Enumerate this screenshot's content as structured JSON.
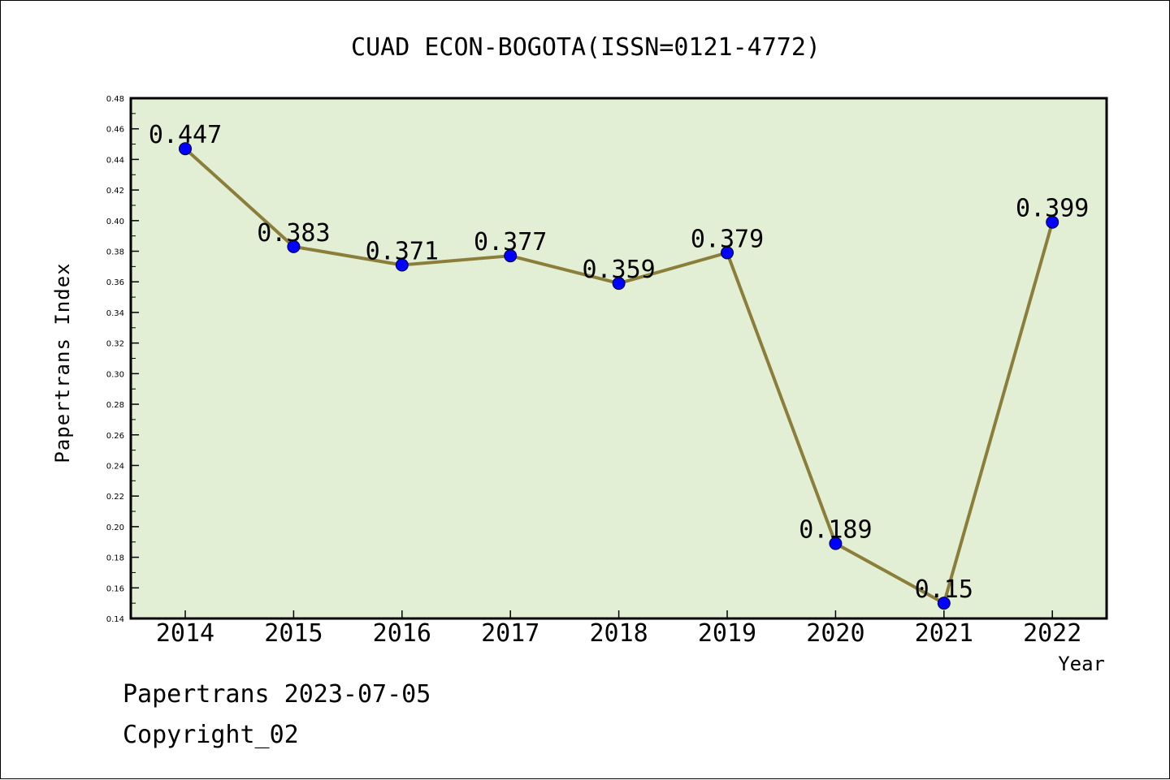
{
  "chart_data": {
    "type": "line",
    "title": "CUAD ECON-BOGOTA(ISSN=0121-4772)",
    "xlabel": "Year",
    "ylabel": "Papertrans Index",
    "categories": [
      "2014",
      "2015",
      "2016",
      "2017",
      "2018",
      "2019",
      "2020",
      "2021",
      "2022"
    ],
    "values": [
      0.447,
      0.383,
      0.371,
      0.377,
      0.359,
      0.379,
      0.189,
      0.15,
      0.399
    ],
    "data_labels": [
      "0.447",
      "0.383",
      "0.371",
      "0.377",
      "0.359",
      "0.379",
      "0.189",
      "0.15",
      "0.399"
    ],
    "ylim": [
      0.14,
      0.48
    ],
    "yticks": [
      "0.14",
      "0.16",
      "0.18",
      "0.20",
      "0.22",
      "0.24",
      "0.26",
      "0.28",
      "0.30",
      "0.32",
      "0.34",
      "0.36",
      "0.38",
      "0.40",
      "0.42",
      "0.44",
      "0.46",
      "0.48"
    ],
    "grid": false,
    "colors": {
      "plot_background": "#e2efd5",
      "line": "#8b7e3a",
      "marker": "#0000ff"
    }
  },
  "footer": {
    "line1": "Papertrans 2023-07-05",
    "line2": "Copyright_02"
  }
}
